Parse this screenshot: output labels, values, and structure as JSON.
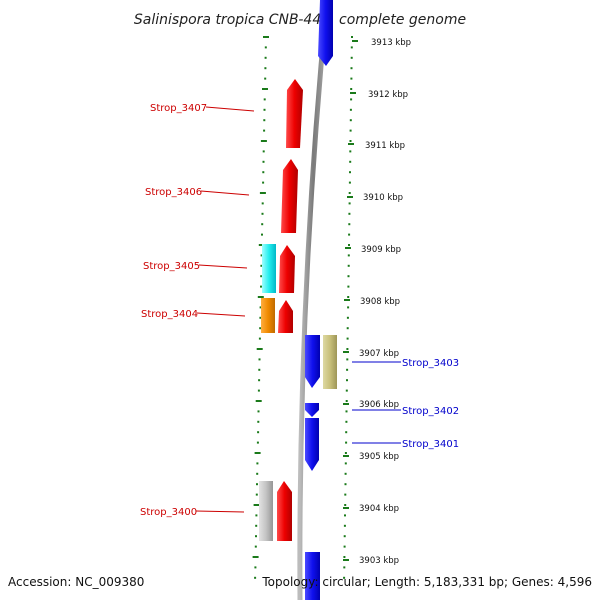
{
  "title": "Salinispora tropica CNB-440, complete genome",
  "accession": "Accession: NC_009380",
  "summary": "Topology: circular; Length: 5,183,331 bp; Genes: 4,596",
  "colors": {
    "forward_label": "#cc0000",
    "reverse_label": "#0000cc",
    "tick": "#1a7a1a",
    "backbone": "#888888"
  },
  "scale": {
    "ticks": [
      "3913 kbp",
      "3912 kbp",
      "3911 kbp",
      "3910 kbp",
      "3909 kbp",
      "3908 kbp",
      "3907 kbp",
      "3906 kbp",
      "3905 kbp",
      "3904 kbp",
      "3903 kbp"
    ]
  },
  "genes": {
    "left_labels": [
      "Strop_3407",
      "Strop_3406",
      "Strop_3405",
      "Strop_3404",
      "Strop_3400"
    ],
    "right_labels": [
      "Strop_3403",
      "Strop_3402",
      "Strop_3401"
    ]
  }
}
